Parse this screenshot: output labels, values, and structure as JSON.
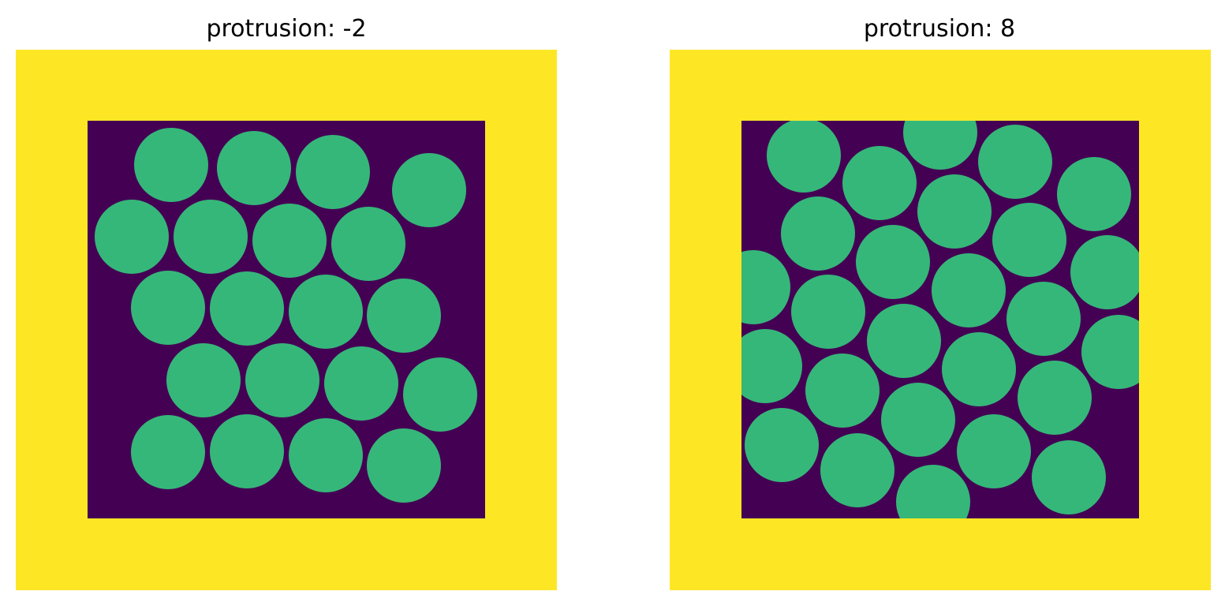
{
  "panels": [
    {
      "title": "protrusion: -2"
    },
    {
      "title": "protrusion: 8"
    }
  ]
}
